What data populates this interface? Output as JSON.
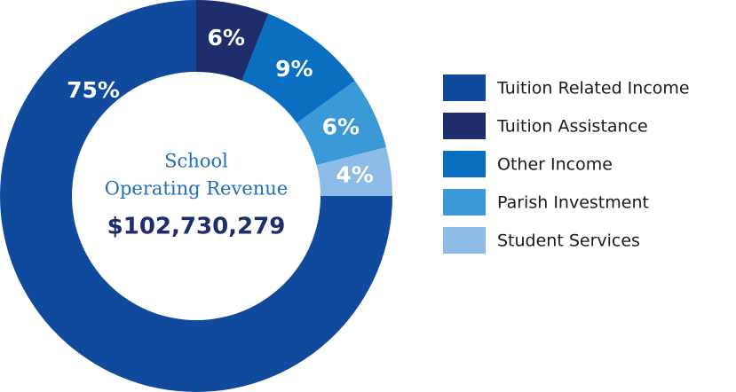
{
  "chart_data": {
    "type": "donut",
    "center_text": [
      "School",
      "Operating Revenue"
    ],
    "total": "$102,730,279",
    "categories": [
      "Tuition Related Income",
      "Tuition Assistance",
      "Other Income",
      "Parish Investment",
      "Student Services"
    ],
    "values": [
      75,
      6,
      9,
      6,
      4
    ],
    "value_labels": [
      "75%",
      "6%",
      "9%",
      "6%",
      "4%"
    ],
    "colors": [
      "#0f4a9c",
      "#1e2d6b",
      "#0a6fc0",
      "#3a9ad8",
      "#8dbde6"
    ],
    "legend": "right"
  }
}
